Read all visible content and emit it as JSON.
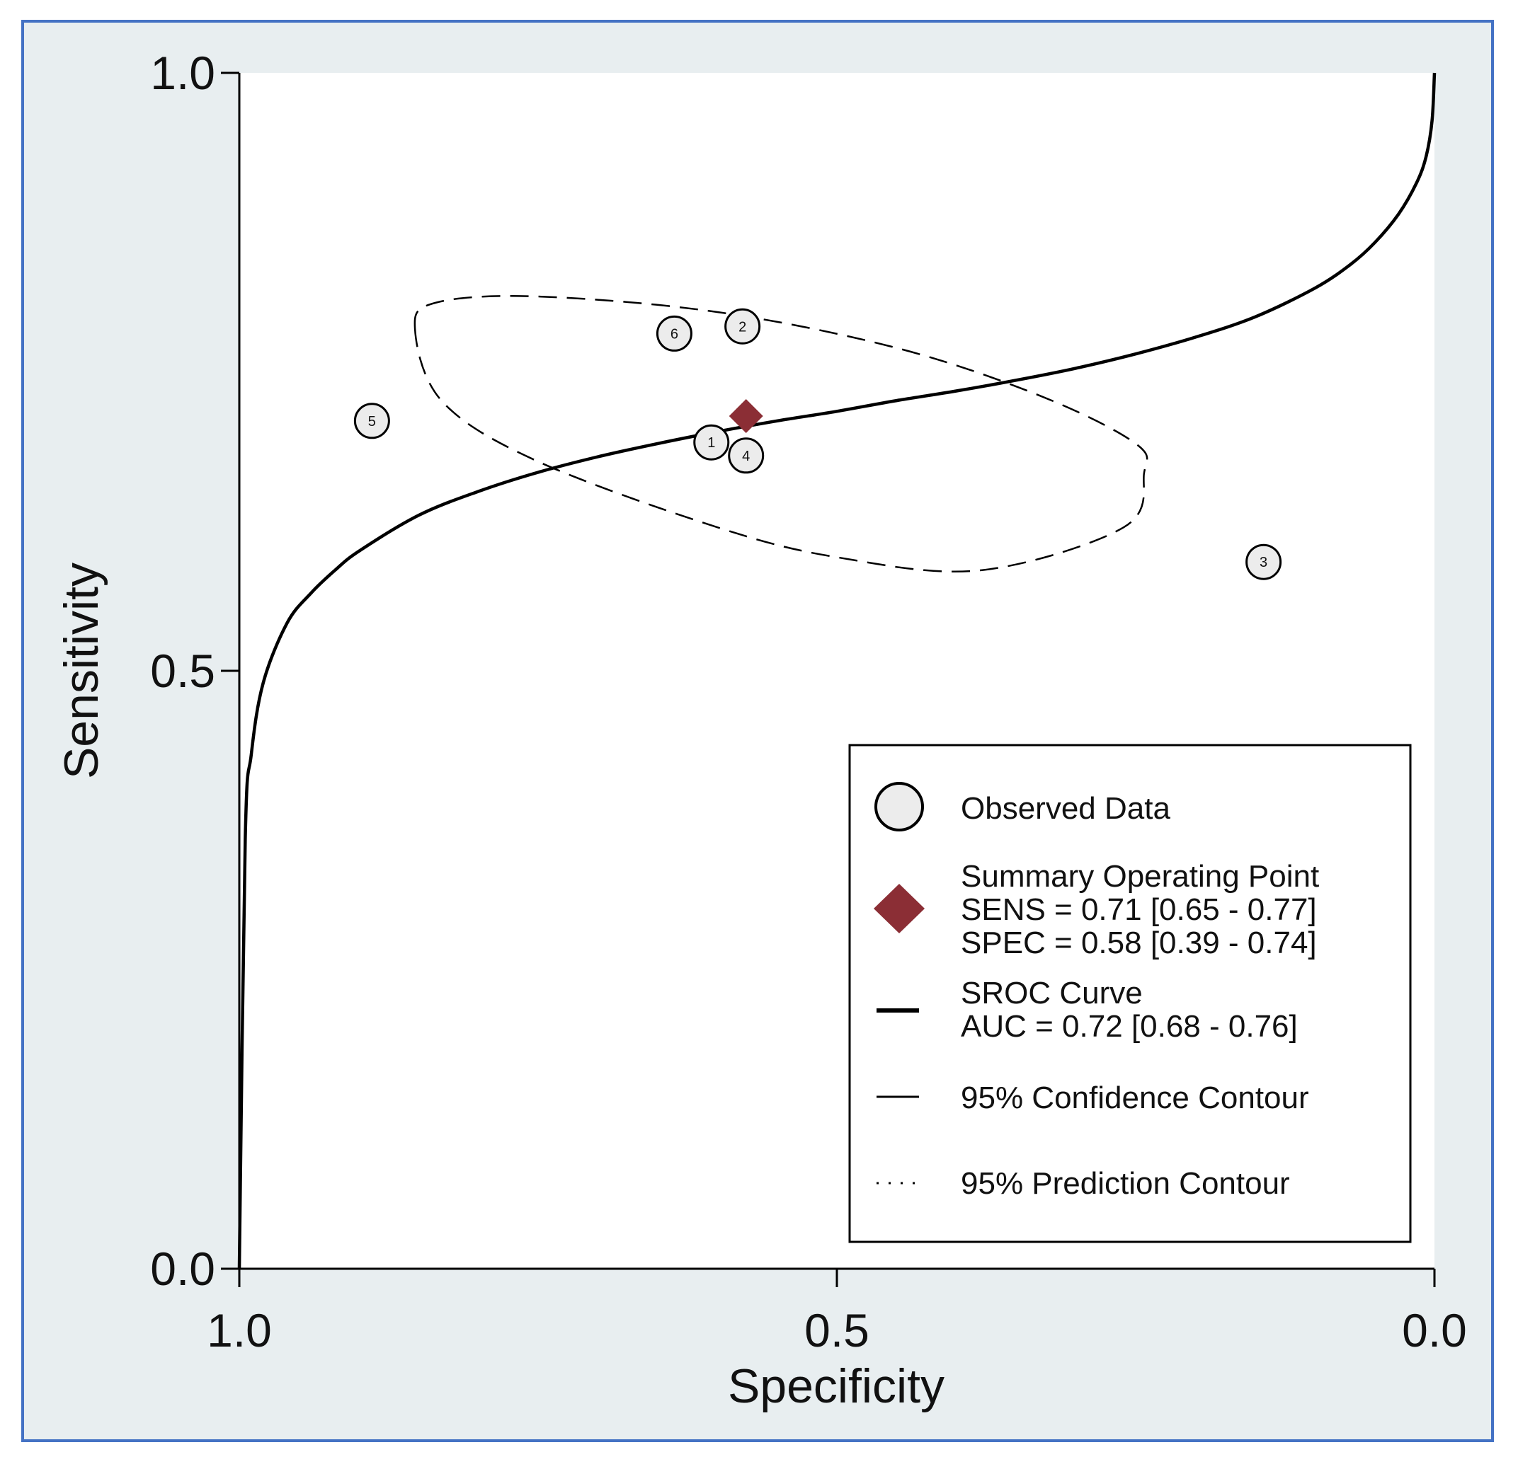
{
  "chart_data": {
    "type": "scatter",
    "xlabel": "Specificity",
    "ylabel": "Sensitivity",
    "x_axis_reversed": true,
    "xlim": [
      1.0,
      0.0
    ],
    "ylim": [
      0.0,
      1.0
    ],
    "x_ticks": [
      "1.0",
      "0.5",
      "0.0"
    ],
    "y_ticks": [
      "0.0",
      "0.5",
      "1.0"
    ],
    "x_tick_values": [
      1.0,
      0.5,
      0.0
    ],
    "y_tick_values": [
      0.0,
      0.5,
      1.0
    ],
    "grid": false,
    "legend_position": "bottom-right",
    "observed_data": [
      {
        "label": "1",
        "specificity": 0.605,
        "sensitivity": 0.691
      },
      {
        "label": "2",
        "specificity": 0.579,
        "sensitivity": 0.788
      },
      {
        "label": "3",
        "specificity": 0.143,
        "sensitivity": 0.591
      },
      {
        "label": "4",
        "specificity": 0.576,
        "sensitivity": 0.68
      },
      {
        "label": "5",
        "specificity": 0.889,
        "sensitivity": 0.709
      },
      {
        "label": "6",
        "specificity": 0.636,
        "sensitivity": 0.782
      }
    ],
    "summary_point": {
      "specificity": 0.576,
      "sensitivity": 0.713,
      "color": "#8b2e35"
    },
    "sroc_curve": {
      "x": [
        1.0,
        0.995,
        0.99,
        0.98,
        0.96,
        0.94,
        0.92,
        0.9,
        0.85,
        0.8,
        0.75,
        0.7,
        0.65,
        0.6,
        0.55,
        0.5,
        0.45,
        0.4,
        0.35,
        0.3,
        0.25,
        0.2,
        0.15,
        0.1,
        0.07,
        0.05,
        0.03,
        0.015,
        0.007,
        0.002,
        0.0
      ],
      "y": [
        0.0,
        0.36,
        0.43,
        0.49,
        0.54,
        0.565,
        0.584,
        0.6,
        0.63,
        0.65,
        0.666,
        0.679,
        0.69,
        0.7,
        0.709,
        0.717,
        0.726,
        0.734,
        0.743,
        0.753,
        0.765,
        0.779,
        0.796,
        0.82,
        0.84,
        0.858,
        0.882,
        0.908,
        0.93,
        0.96,
        1.0
      ],
      "color": "#000000"
    },
    "confidence_contour": {
      "center": {
        "specificity": 0.536,
        "sensitivity": 0.73
      },
      "points": [
        {
          "specificity": 0.853,
          "sensitivity": 0.786
        },
        {
          "specificity": 0.835,
          "sensitivity": 0.808
        },
        {
          "specificity": 0.75,
          "sensitivity": 0.813
        },
        {
          "specificity": 0.6,
          "sensitivity": 0.8
        },
        {
          "specificity": 0.45,
          "sensitivity": 0.77
        },
        {
          "specificity": 0.33,
          "sensitivity": 0.73
        },
        {
          "specificity": 0.25,
          "sensitivity": 0.69
        },
        {
          "specificity": 0.243,
          "sensitivity": 0.665
        },
        {
          "specificity": 0.26,
          "sensitivity": 0.62
        },
        {
          "specificity": 0.38,
          "sensitivity": 0.584
        },
        {
          "specificity": 0.5,
          "sensitivity": 0.595
        },
        {
          "specificity": 0.6,
          "sensitivity": 0.62
        },
        {
          "specificity": 0.75,
          "sensitivity": 0.675
        },
        {
          "specificity": 0.83,
          "sensitivity": 0.725
        },
        {
          "specificity": 0.853,
          "sensitivity": 0.786
        }
      ]
    }
  },
  "legend": {
    "items": [
      {
        "lines": [
          "Observed Data"
        ]
      },
      {
        "lines": [
          "Summary Operating Point",
          "SENS = 0.71 [0.65 - 0.77]",
          "SPEC = 0.58 [0.39 - 0.74]"
        ]
      },
      {
        "lines": [
          "SROC Curve",
          "AUC = 0.72 [0.68 - 0.76]"
        ]
      },
      {
        "lines": [
          "95% Confidence Contour"
        ]
      },
      {
        "lines": [
          "95% Prediction Contour"
        ]
      }
    ]
  },
  "colors": {
    "frame_border": "#4472c4",
    "outer_background": "#e8eef0",
    "plot_background": "#ffffff",
    "marker_fill": "#ececec",
    "summary_marker": "#8b2e35"
  }
}
